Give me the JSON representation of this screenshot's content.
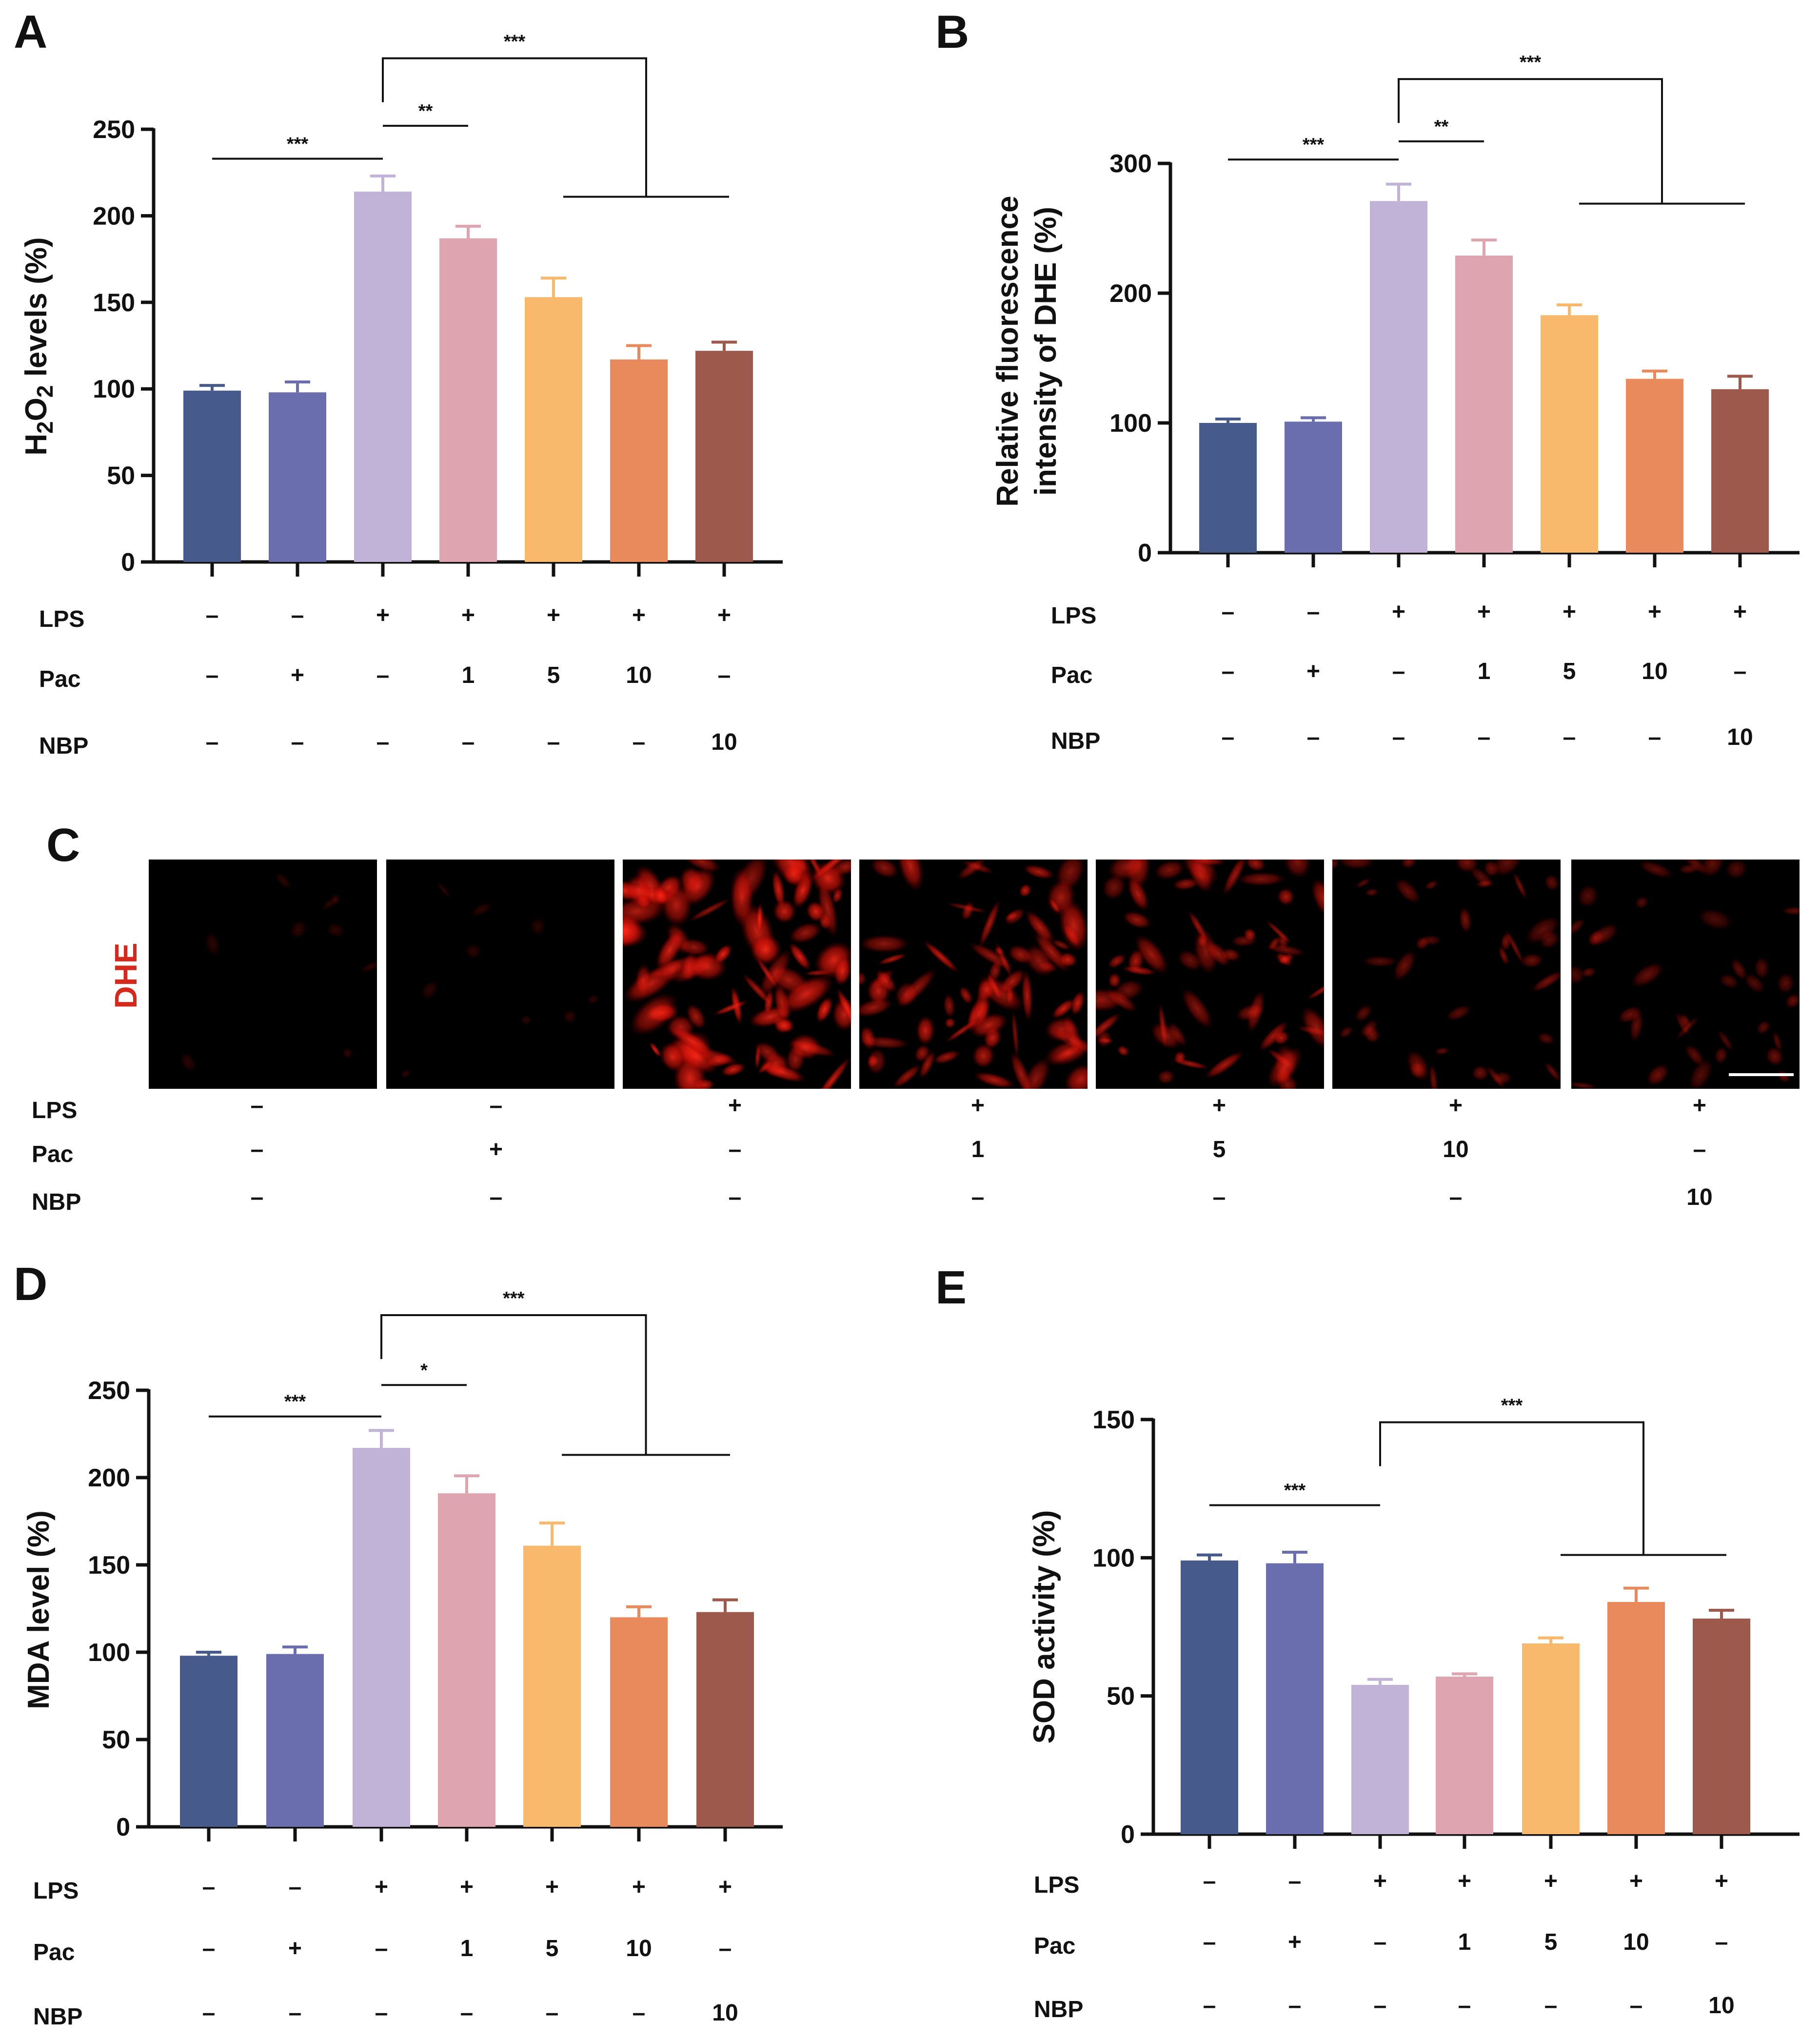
{
  "figure": {
    "panel_c": {
      "letter": "C",
      "stain_label": "DHE",
      "stain_color": "#d42a1e",
      "image_brightness": [
        0.03,
        0.03,
        0.92,
        0.75,
        0.62,
        0.38,
        0.33
      ],
      "image_alt": "DHE fluorescence micrograph",
      "conditions": [
        {
          "label": "LPS",
          "values": [
            "–",
            "–",
            "+",
            "+",
            "+",
            "+",
            "+"
          ]
        },
        {
          "label": "Pac",
          "values": [
            "–",
            "+",
            "–",
            "1",
            "5",
            "10",
            "–"
          ]
        },
        {
          "label": "NBP",
          "values": [
            "–",
            "–",
            "–",
            "–",
            "–",
            "–",
            "10"
          ]
        }
      ]
    }
  },
  "chart_data": [
    {
      "panel": "A",
      "type": "bar",
      "ylabel": "H2O2 levels (%)",
      "ylabel_parts": [
        "H",
        "2",
        "O",
        "2",
        " levels (%)"
      ],
      "ylim": [
        0,
        250
      ],
      "yticks": [
        "0",
        "50",
        "100",
        "150",
        "200",
        "250"
      ],
      "values": [
        99,
        98,
        214,
        187,
        153,
        117,
        122
      ],
      "errors": [
        3,
        6,
        9,
        7,
        11,
        8,
        5
      ],
      "colors": [
        "#465b8c",
        "#6a6eaf",
        "#c1b3d8",
        "#dea5b0",
        "#f8b96d",
        "#e98a5c",
        "#9e594d"
      ],
      "conditions": [
        {
          "label": "LPS",
          "values": [
            "–",
            "–",
            "+",
            "+",
            "+",
            "+",
            "+"
          ]
        },
        {
          "label": "Pac",
          "values": [
            "–",
            "+",
            "–",
            "1",
            "5",
            "10",
            "–"
          ]
        },
        {
          "label": "NBP",
          "values": [
            "–",
            "–",
            "–",
            "–",
            "–",
            "–",
            "10"
          ]
        }
      ],
      "significance": [
        {
          "text": "***",
          "kind": "pair",
          "from": 0,
          "to": 2,
          "level": 233
        },
        {
          "text": "**",
          "kind": "pair",
          "from": 2,
          "to": 3,
          "level": 252
        },
        {
          "text": "***",
          "kind": "group",
          "from": 2,
          "group": [
            4,
            6
          ],
          "level": 291,
          "group_level": 211
        }
      ]
    },
    {
      "panel": "B",
      "type": "bar",
      "ylabel": "Relative fluorescence intensity of DHE (%)",
      "ylabel_lines": [
        "Relative fluorescence",
        "intensity of DHE (%)"
      ],
      "ylim": [
        0,
        300
      ],
      "yticks": [
        "0",
        "100",
        "200",
        "300"
      ],
      "values": [
        100,
        101,
        271,
        229,
        183,
        134,
        126
      ],
      "errors": [
        3,
        3,
        13,
        12,
        8,
        6,
        10
      ],
      "colors": [
        "#465b8c",
        "#6a6eaf",
        "#c1b3d8",
        "#dea5b0",
        "#f8b96d",
        "#e98a5c",
        "#9e594d"
      ],
      "conditions": [
        {
          "label": "LPS",
          "values": [
            "–",
            "–",
            "+",
            "+",
            "+",
            "+",
            "+"
          ]
        },
        {
          "label": "Pac",
          "values": [
            "–",
            "+",
            "–",
            "1",
            "5",
            "10",
            "–"
          ]
        },
        {
          "label": "NBP",
          "values": [
            "–",
            "–",
            "–",
            "–",
            "–",
            "–",
            "10"
          ]
        }
      ],
      "significance": [
        {
          "text": "***",
          "kind": "pair",
          "from": 0,
          "to": 2,
          "level": 303
        },
        {
          "text": "**",
          "kind": "pair",
          "from": 2,
          "to": 3,
          "level": 317
        },
        {
          "text": "***",
          "kind": "group",
          "from": 2,
          "group": [
            4,
            6
          ],
          "level": 365,
          "group_level": 269
        }
      ]
    },
    {
      "panel": "D",
      "type": "bar",
      "ylabel": "MDA level (%)",
      "ylim": [
        0,
        250
      ],
      "yticks": [
        "0",
        "50",
        "100",
        "150",
        "200",
        "250"
      ],
      "values": [
        98,
        99,
        217,
        191,
        161,
        120,
        123
      ],
      "errors": [
        2,
        4,
        10,
        10,
        13,
        6,
        7
      ],
      "colors": [
        "#465b8c",
        "#6a6eaf",
        "#c1b3d8",
        "#dea5b0",
        "#f8b96d",
        "#e98a5c",
        "#9e594d"
      ],
      "conditions": [
        {
          "label": "LPS",
          "values": [
            "–",
            "–",
            "+",
            "+",
            "+",
            "+",
            "+"
          ]
        },
        {
          "label": "Pac",
          "values": [
            "–",
            "+",
            "–",
            "1",
            "5",
            "10",
            "–"
          ]
        },
        {
          "label": "NBP",
          "values": [
            "–",
            "–",
            "–",
            "–",
            "–",
            "–",
            "10"
          ]
        }
      ],
      "significance": [
        {
          "text": "***",
          "kind": "pair",
          "from": 0,
          "to": 2,
          "level": 235
        },
        {
          "text": "*",
          "kind": "pair",
          "from": 2,
          "to": 3,
          "level": 253
        },
        {
          "text": "***",
          "kind": "group",
          "from": 2,
          "group": [
            4,
            6
          ],
          "level": 293,
          "group_level": 213
        }
      ]
    },
    {
      "panel": "E",
      "type": "bar",
      "ylabel": "SOD activity (%)",
      "ylim": [
        0,
        150
      ],
      "yticks": [
        "0",
        "50",
        "100",
        "150"
      ],
      "values": [
        99,
        98,
        54,
        57,
        69,
        84,
        78
      ],
      "errors": [
        2,
        4,
        2,
        1,
        2,
        5,
        3
      ],
      "colors": [
        "#465b8c",
        "#6a6eaf",
        "#c1b3d8",
        "#dea5b0",
        "#f8b96d",
        "#e98a5c",
        "#9e594d"
      ],
      "conditions": [
        {
          "label": "LPS",
          "values": [
            "–",
            "–",
            "+",
            "+",
            "+",
            "+",
            "+"
          ]
        },
        {
          "label": "Pac",
          "values": [
            "–",
            "+",
            "–",
            "1",
            "5",
            "10",
            "–"
          ]
        },
        {
          "label": "NBP",
          "values": [
            "–",
            "–",
            "–",
            "–",
            "–",
            "–",
            "10"
          ]
        }
      ],
      "significance": [
        {
          "text": "***",
          "kind": "pair",
          "from": 0,
          "to": 2,
          "level": 119
        },
        {
          "text": "***",
          "kind": "group",
          "from": 2,
          "group": [
            4,
            6
          ],
          "level": 149,
          "group_level": 101
        }
      ]
    }
  ]
}
